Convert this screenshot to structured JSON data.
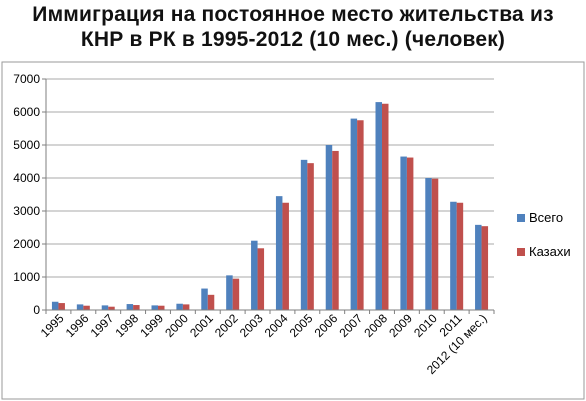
{
  "title_line1": "Иммиграция на постоянное место жительства из",
  "title_line2": "КНР в РК в 1995-2012 (10 мес.) (человек)",
  "chart_data": {
    "type": "bar",
    "title": "Иммиграция на постоянное место жительства из КНР в РК в 1995-2012 (10 мес.) (человек)",
    "categories": [
      "1995",
      "1996",
      "1997",
      "1998",
      "1999",
      "2000",
      "2001",
      "2002",
      "2003",
      "2004",
      "2005",
      "2006",
      "2007",
      "2008",
      "2009",
      "2010",
      "2011",
      "2012 (10 мес.)"
    ],
    "series": [
      {
        "name": "Всего",
        "color": "#4f81bd",
        "values": [
          250,
          170,
          140,
          180,
          140,
          190,
          650,
          1050,
          2100,
          3450,
          4550,
          5000,
          5800,
          6300,
          4650,
          4000,
          3280,
          2580
        ]
      },
      {
        "name": "Казахи",
        "color": "#c0504d",
        "values": [
          210,
          130,
          100,
          150,
          130,
          170,
          460,
          950,
          1870,
          3250,
          4450,
          4820,
          5750,
          6250,
          4620,
          3980,
          3250,
          2540
        ]
      }
    ],
    "ylim": [
      0,
      7000
    ],
    "yticks": [
      0,
      1000,
      2000,
      3000,
      4000,
      5000,
      6000,
      7000
    ],
    "grid": true,
    "legend": "right"
  }
}
